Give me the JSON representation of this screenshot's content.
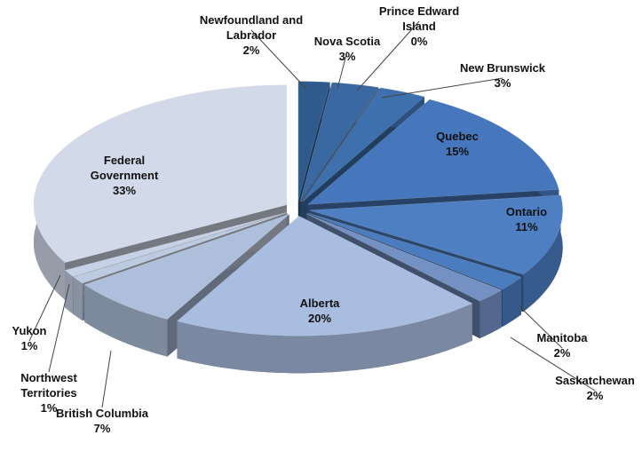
{
  "chart_data": {
    "type": "pie",
    "categories": [
      "Newfoundland and Labrador",
      "Nova Scotia",
      "Prince Edward Island",
      "New Brunswick",
      "Quebec",
      "Ontario",
      "Manitoba",
      "Saskatchewan",
      "Alberta",
      "British Columbia",
      "Northwest Territories",
      "Yukon",
      "Federal Government"
    ],
    "values": [
      2,
      3,
      0,
      3,
      15,
      11,
      2,
      2,
      20,
      7,
      1,
      1,
      33
    ],
    "value_labels": [
      "2%",
      "3%",
      "0%",
      "3%",
      "15%",
      "11%",
      "2%",
      "2%",
      "20%",
      "7%",
      "1%",
      "1%",
      "33%"
    ],
    "colors": [
      "#2f5b8c",
      "#3a69a1",
      "#4474ae",
      "#3d70ad",
      "#4676bb",
      "#4d7fc2",
      "#4a7cc0",
      "#7391c2",
      "#a9bde0",
      "#aebfdc",
      "#bccbe2",
      "#c5d1e6",
      "#d2daea"
    ]
  }
}
